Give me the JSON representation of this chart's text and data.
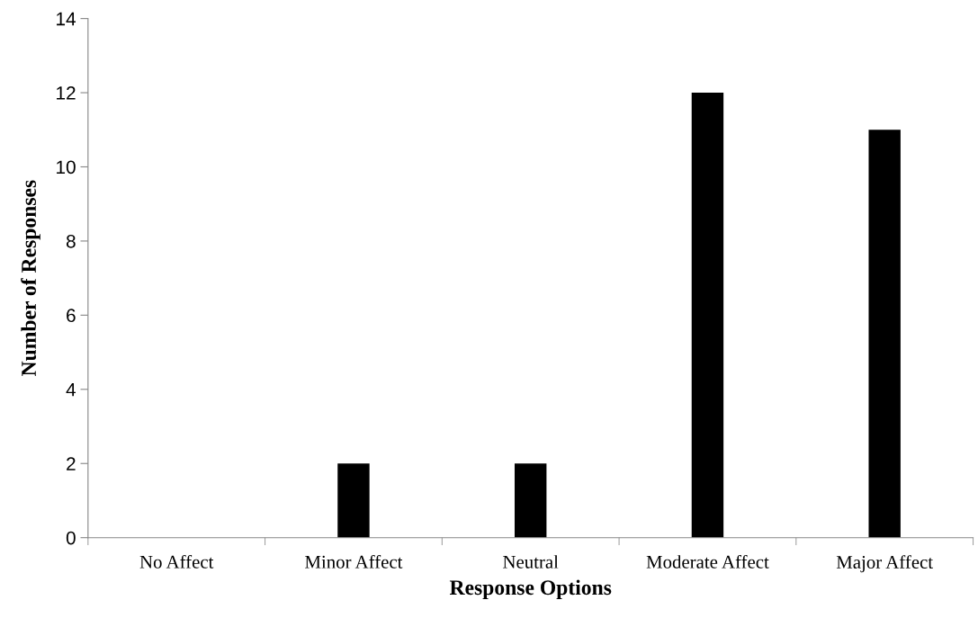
{
  "chart_data": {
    "type": "bar",
    "xlabel": "Response Options",
    "ylabel": "Number of Responses",
    "categories": [
      "No Affect",
      "Minor Affect",
      "Neutral",
      "Moderate Affect",
      "Major Affect"
    ],
    "values": [
      0,
      2,
      2,
      12,
      11
    ],
    "color": "#000000",
    "ylim": [
      0,
      14
    ],
    "yticks": [
      0,
      2,
      4,
      6,
      8,
      10,
      12,
      14
    ],
    "grid": false
  }
}
